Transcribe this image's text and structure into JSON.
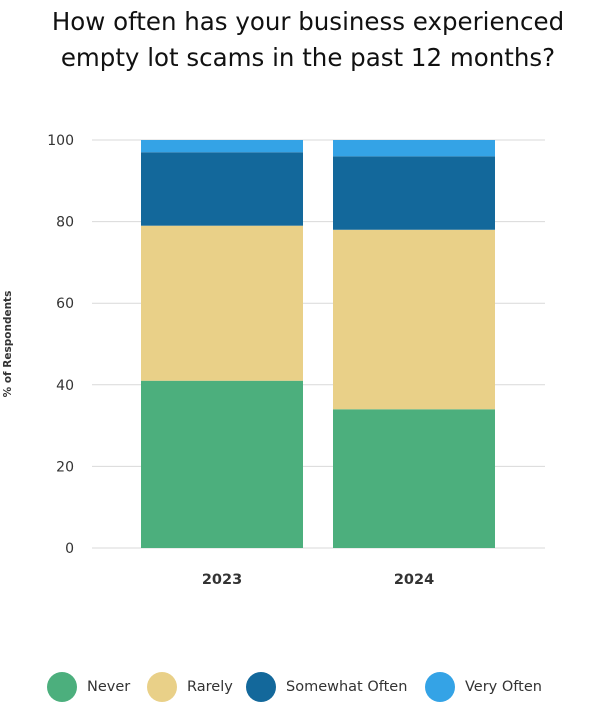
{
  "chart_data": {
    "type": "bar",
    "stacked": true,
    "title_lines": [
      "How often has your business experienced",
      "empty lot scams in the past 12 months?"
    ],
    "xlabel": "",
    "ylabel": "% of Respondents",
    "ylim": [
      0,
      100
    ],
    "yticks": [
      0,
      20,
      40,
      60,
      80,
      100
    ],
    "grid": true,
    "legend_position": "bottom",
    "categories": [
      "2023",
      "2024"
    ],
    "series": [
      {
        "name": "Never",
        "color": "#4caf7d",
        "values": [
          41,
          34
        ]
      },
      {
        "name": "Rarely",
        "color": "#e9d088",
        "values": [
          38,
          44
        ]
      },
      {
        "name": "Somewhat Often",
        "color": "#13689b",
        "values": [
          18,
          18
        ]
      },
      {
        "name": "Very Often",
        "color": "#34a3e6",
        "values": [
          3,
          4
        ]
      }
    ]
  }
}
